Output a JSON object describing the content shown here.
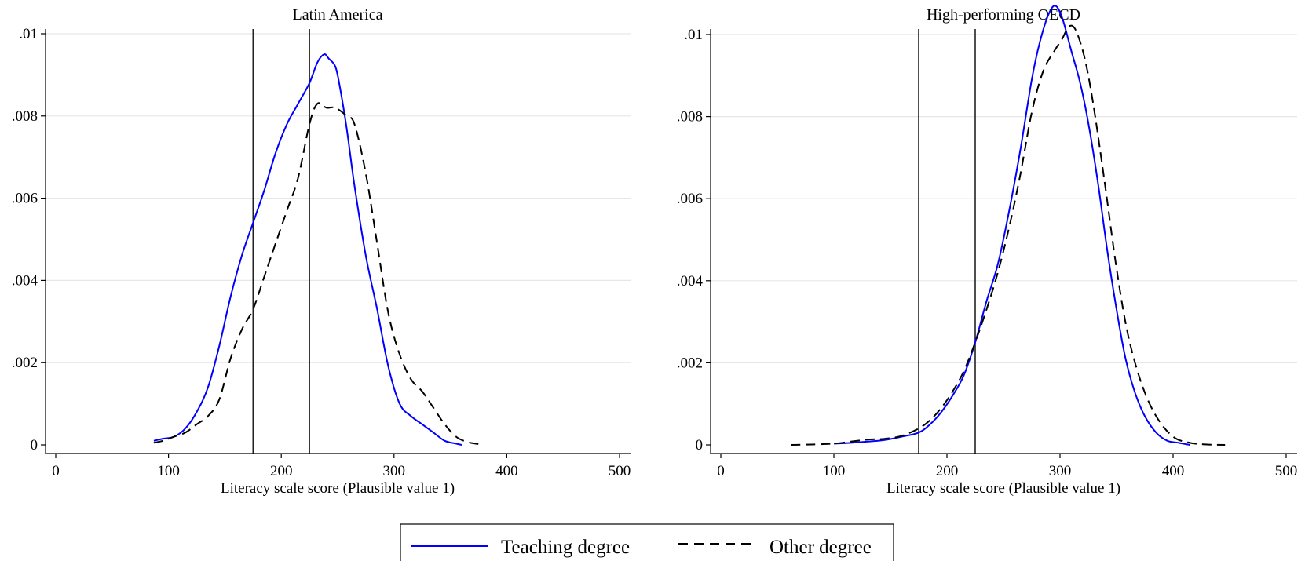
{
  "chart_data": [
    {
      "type": "line",
      "title": "Latin America",
      "xlabel": "Literacy scale score (Plausible value 1)",
      "ylabel": "",
      "xlim": [
        0,
        500
      ],
      "ylim": [
        0,
        0.01
      ],
      "xticks": [
        0,
        100,
        200,
        300,
        400,
        500
      ],
      "xtick_labels": [
        "0",
        "100",
        "200",
        "300",
        "400",
        "500"
      ],
      "yticks": [
        0,
        0.002,
        0.004,
        0.006,
        0.008,
        0.01
      ],
      "ytick_labels": [
        "0",
        ".002",
        ".004",
        ".006",
        ".008",
        ".01"
      ],
      "grid": true,
      "vlines": [
        175,
        225
      ],
      "series": [
        {
          "name": "Teaching degree",
          "color": "#0000ff",
          "style": "solid",
          "x": [
            87,
            95,
            105,
            115,
            125,
            135,
            145,
            155,
            165,
            175,
            185,
            195,
            205,
            215,
            225,
            232,
            238,
            242,
            248,
            252,
            258,
            265,
            275,
            285,
            295,
            305,
            315,
            325,
            335,
            345,
            355,
            360
          ],
          "y": [
            0.0001,
            0.00015,
            0.0002,
            0.0004,
            0.0008,
            0.0014,
            0.0024,
            0.0036,
            0.0046,
            0.0054,
            0.0062,
            0.0071,
            0.0078,
            0.0083,
            0.0088,
            0.0093,
            0.0095,
            0.0094,
            0.0092,
            0.0087,
            0.0077,
            0.0063,
            0.0046,
            0.0033,
            0.0019,
            0.001,
            0.0007,
            0.0005,
            0.0003,
            0.0001,
            3e-05,
            0.0
          ]
        },
        {
          "name": "Other degree",
          "color": "#000000",
          "style": "dashed",
          "x": [
            87,
            95,
            105,
            115,
            125,
            135,
            145,
            155,
            165,
            175,
            185,
            195,
            205,
            215,
            225,
            232,
            240,
            248,
            258,
            265,
            275,
            285,
            295,
            305,
            315,
            325,
            335,
            345,
            355,
            365,
            375,
            380
          ],
          "y": [
            5e-05,
            0.0001,
            0.0002,
            0.0003,
            0.0005,
            0.0007,
            0.0011,
            0.0021,
            0.0028,
            0.0033,
            0.0041,
            0.0049,
            0.0057,
            0.0065,
            0.0078,
            0.0083,
            0.0082,
            0.0082,
            0.008,
            0.0078,
            0.0066,
            0.0049,
            0.0032,
            0.0022,
            0.0016,
            0.0013,
            0.0009,
            0.0005,
            0.0002,
            7e-05,
            2e-05,
            0.0
          ]
        }
      ]
    },
    {
      "type": "line",
      "title": "High-performing OECD",
      "xlabel": "Literacy scale score (Plausible value 1)",
      "ylabel": "",
      "xlim": [
        0,
        500
      ],
      "ylim": [
        0,
        0.011
      ],
      "xticks": [
        0,
        100,
        200,
        300,
        400,
        500
      ],
      "xtick_labels": [
        "0",
        "100",
        "200",
        "300",
        "400",
        "500"
      ],
      "yticks": [
        0,
        0.002,
        0.004,
        0.006,
        0.008,
        0.01
      ],
      "ytick_labels": [
        "0",
        ".002",
        ".004",
        ".006",
        ".008",
        ".01"
      ],
      "grid": true,
      "vlines": [
        175,
        225
      ],
      "series": [
        {
          "name": "Teaching degree",
          "color": "#0000ff",
          "style": "solid",
          "x": [
            100,
            115,
            130,
            145,
            160,
            175,
            185,
            195,
            205,
            215,
            225,
            235,
            245,
            255,
            265,
            275,
            282,
            290,
            296,
            302,
            310,
            318,
            326,
            334,
            342,
            350,
            358,
            366,
            375,
            385,
            395,
            405,
            415
          ],
          "y": [
            3e-05,
            5e-05,
            8e-05,
            0.00012,
            0.0002,
            0.0003,
            0.0005,
            0.0008,
            0.0012,
            0.0017,
            0.0025,
            0.0035,
            0.0044,
            0.0057,
            0.0072,
            0.0089,
            0.0098,
            0.0105,
            0.0107,
            0.0104,
            0.0096,
            0.0088,
            0.0077,
            0.0063,
            0.0047,
            0.0033,
            0.0021,
            0.0013,
            0.0007,
            0.0003,
            0.0001,
            5e-05,
            0.0
          ]
        },
        {
          "name": "Other degree",
          "color": "#000000",
          "style": "dashed",
          "x": [
            62,
            80,
            100,
            115,
            130,
            145,
            160,
            175,
            185,
            195,
            205,
            215,
            225,
            235,
            245,
            255,
            265,
            275,
            285,
            295,
            302,
            308,
            314,
            322,
            330,
            340,
            350,
            360,
            372,
            385,
            400,
            415,
            430,
            446
          ],
          "y": [
            0.0,
            1e-05,
            3e-05,
            8e-05,
            0.00013,
            0.00015,
            0.00022,
            0.0004,
            0.0006,
            0.0009,
            0.0013,
            0.0018,
            0.0025,
            0.0033,
            0.0042,
            0.0053,
            0.0066,
            0.0081,
            0.0091,
            0.0096,
            0.0099,
            0.0102,
            0.0101,
            0.0094,
            0.0082,
            0.0063,
            0.0043,
            0.0027,
            0.0015,
            0.0007,
            0.0002,
            5e-05,
            1e-05,
            0.0
          ]
        }
      ]
    }
  ],
  "legend": {
    "placement": "bottom-center",
    "items": [
      {
        "label": "Teaching degree",
        "color": "#0000ff",
        "style": "solid"
      },
      {
        "label": "Other degree",
        "color": "#000000",
        "style": "dashed"
      }
    ]
  }
}
